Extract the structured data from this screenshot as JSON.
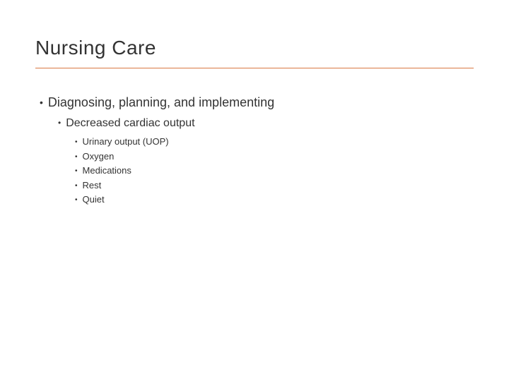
{
  "slide": {
    "title": "Nursing Care",
    "divider_color": "#d97842",
    "background_color": "#ffffff",
    "text_color": "#333333",
    "bullets": {
      "l1": "Diagnosing, planning, and implementing",
      "l2": "Decreased cardiac output",
      "l3": [
        "Urinary output (UOP)",
        "Oxygen",
        "Medications",
        "Rest",
        "Quiet"
      ]
    },
    "typography": {
      "title_fontsize": 28,
      "l1_fontsize": 18,
      "l2_fontsize": 16,
      "l3_fontsize": 13,
      "font_family": "Verdana"
    }
  }
}
